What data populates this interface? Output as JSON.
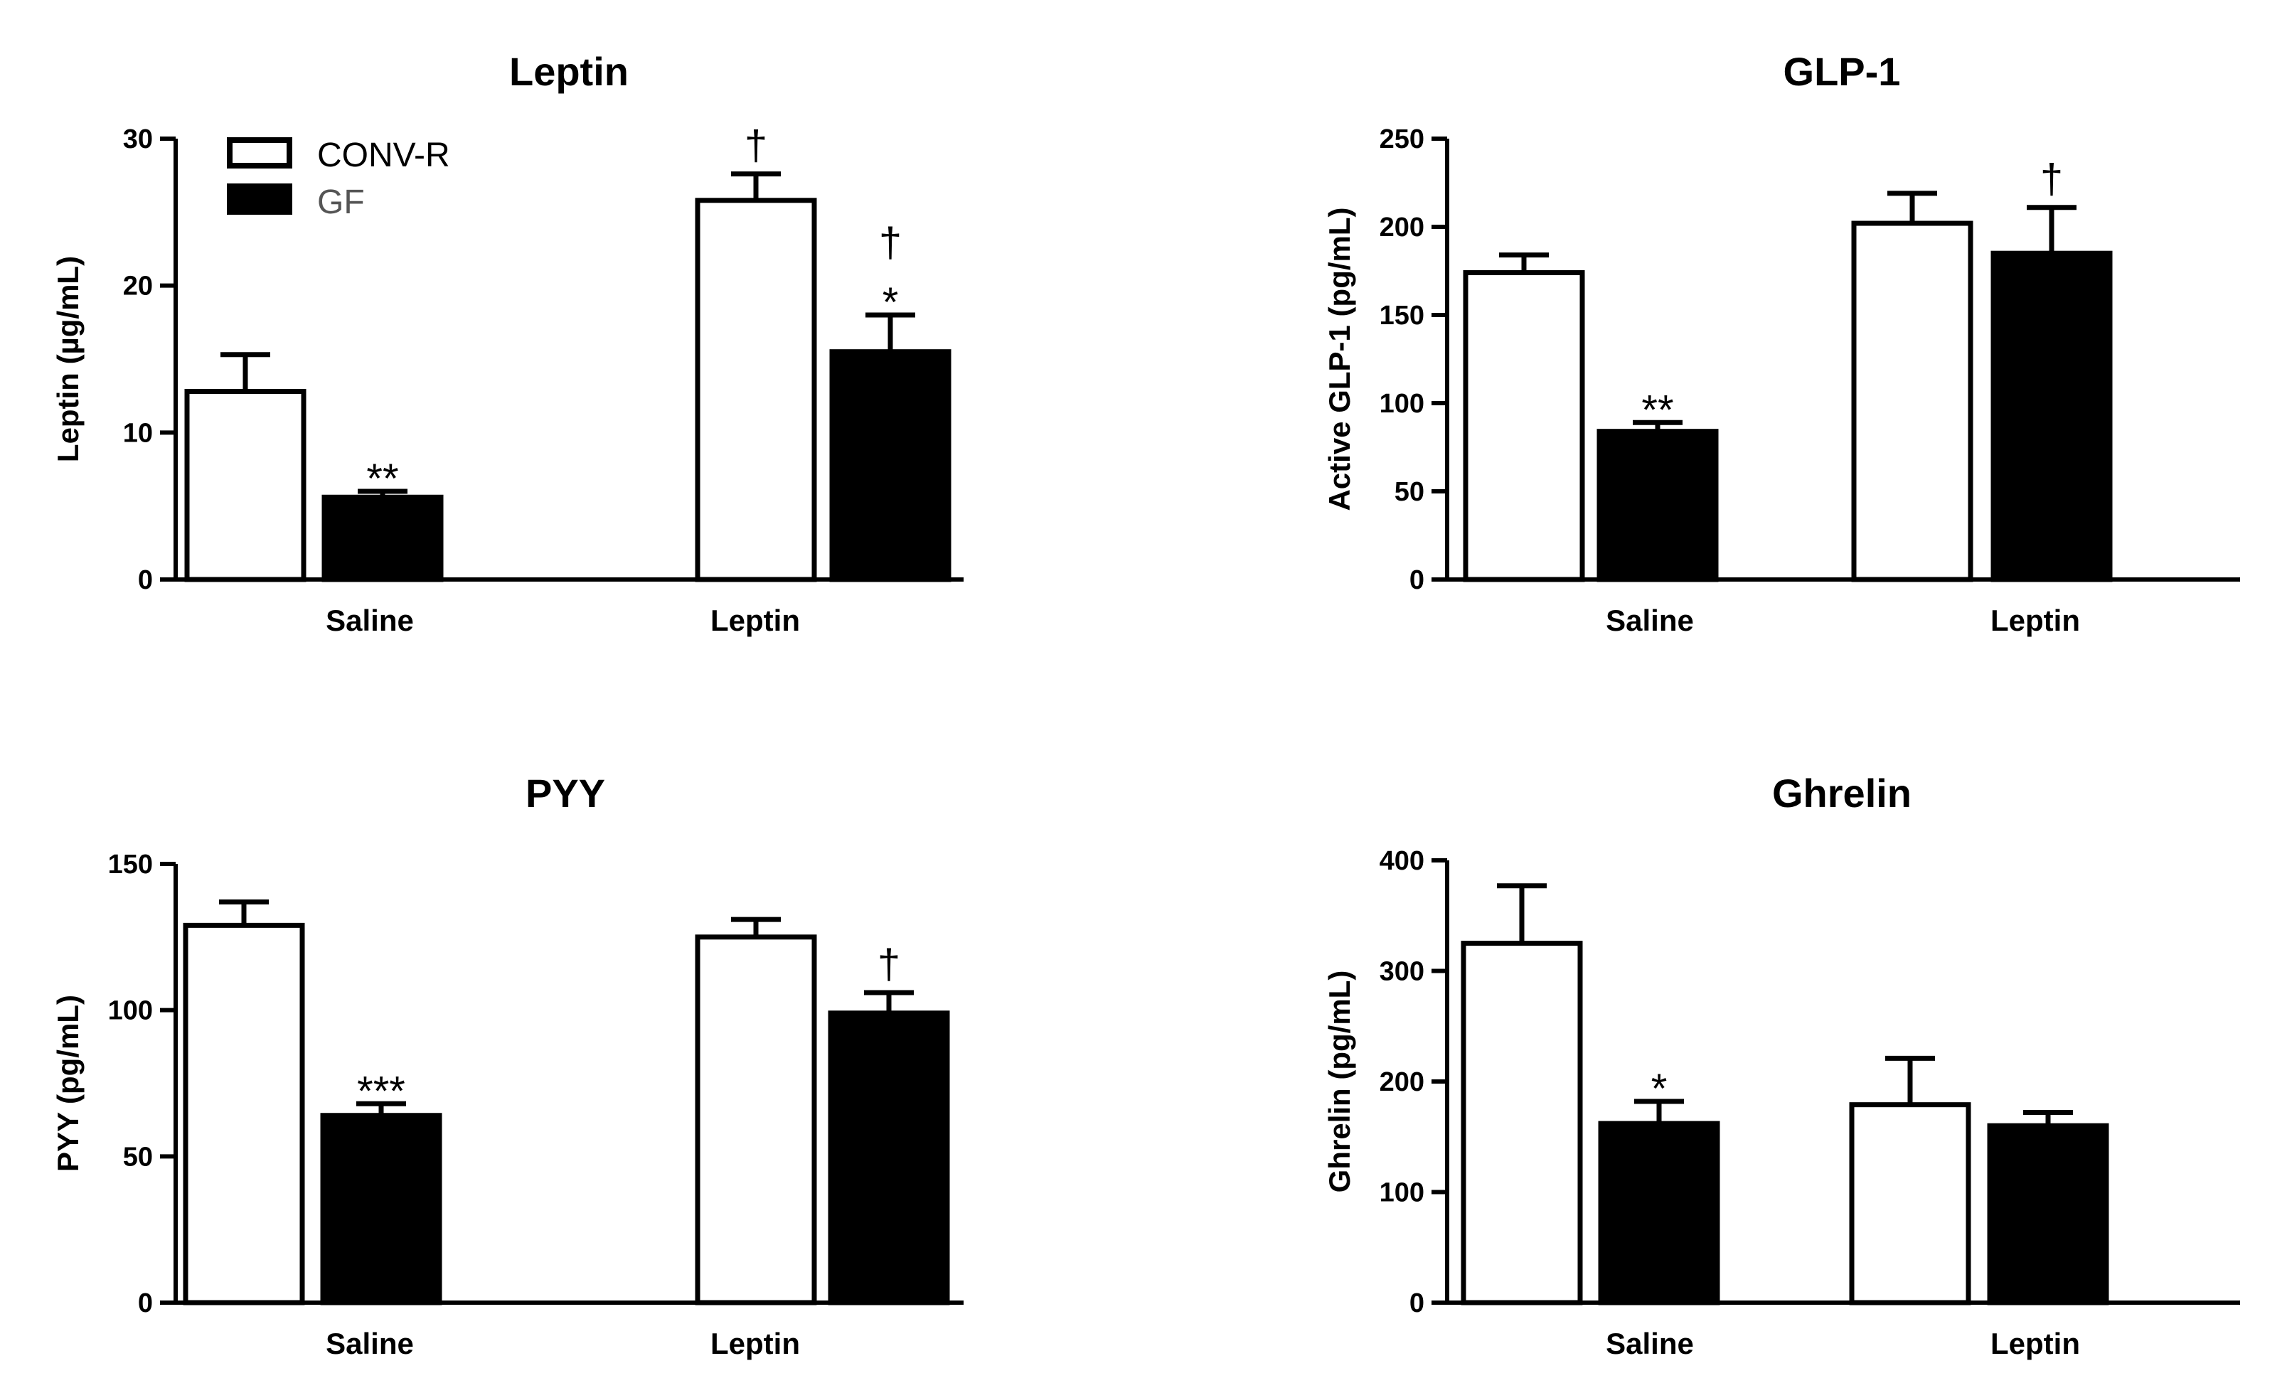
{
  "legend": [
    {
      "label": "CONV-R",
      "fill": "#ffffff"
    },
    {
      "label": "GF",
      "fill": "#000000"
    }
  ],
  "colors": {
    "conv_r": "#ffffff",
    "gf": "#000000",
    "stroke": "#000000"
  },
  "chart_data": [
    {
      "type": "bar",
      "title": "Leptin",
      "ylabel": "Leptin (µg/mL)",
      "categories": [
        "Saline",
        "Leptin"
      ],
      "ylim": [
        0,
        30
      ],
      "yticks": [
        0,
        10,
        20,
        30
      ],
      "series": [
        {
          "name": "CONV-R",
          "values": [
            12.8,
            25.8
          ],
          "errors": [
            2.5,
            1.8
          ]
        },
        {
          "name": "GF",
          "values": [
            5.6,
            15.5
          ],
          "errors": [
            0.4,
            2.5
          ]
        }
      ],
      "annotations": [
        {
          "series": 0,
          "category": 1,
          "lines": [
            "†"
          ]
        },
        {
          "series": 1,
          "category": 0,
          "lines": [
            "**"
          ]
        },
        {
          "series": 1,
          "category": 1,
          "lines": [
            "†",
            "*"
          ]
        }
      ]
    },
    {
      "type": "bar",
      "title": "GLP-1",
      "ylabel": "Active GLP-1 (pg/mL)",
      "categories": [
        "Saline",
        "Leptin"
      ],
      "ylim": [
        0,
        250
      ],
      "yticks": [
        0,
        50,
        100,
        150,
        200,
        250
      ],
      "series": [
        {
          "name": "CONV-R",
          "values": [
            174,
            202
          ],
          "errors": [
            10,
            17
          ]
        },
        {
          "name": "GF",
          "values": [
            84,
            185
          ],
          "errors": [
            5,
            26
          ]
        }
      ],
      "annotations": [
        {
          "series": 1,
          "category": 0,
          "lines": [
            "**"
          ]
        },
        {
          "series": 1,
          "category": 1,
          "lines": [
            "†"
          ]
        }
      ]
    },
    {
      "type": "bar",
      "title": "PYY",
      "ylabel": "PYY (pg/mL)",
      "categories": [
        "Saline",
        "Leptin"
      ],
      "ylim": [
        0,
        150
      ],
      "yticks": [
        0,
        50,
        100,
        150
      ],
      "series": [
        {
          "name": "CONV-R",
          "values": [
            129,
            125
          ],
          "errors": [
            8,
            6
          ]
        },
        {
          "name": "GF",
          "values": [
            64,
            99
          ],
          "errors": [
            4,
            7
          ]
        }
      ],
      "annotations": [
        {
          "series": 1,
          "category": 0,
          "lines": [
            "***"
          ]
        },
        {
          "series": 1,
          "category": 1,
          "lines": [
            "†"
          ]
        }
      ]
    },
    {
      "type": "bar",
      "title": "Ghrelin",
      "ylabel": "Ghrelin (pg/mL)",
      "categories": [
        "Saline",
        "Leptin"
      ],
      "ylim": [
        0,
        400
      ],
      "yticks": [
        0,
        100,
        200,
        300,
        400
      ],
      "series": [
        {
          "name": "CONV-R",
          "values": [
            325,
            179
          ],
          "errors": [
            52,
            42
          ]
        },
        {
          "name": "GF",
          "values": [
            162,
            160
          ],
          "errors": [
            20,
            12
          ]
        }
      ],
      "annotations": [
        {
          "series": 1,
          "category": 0,
          "lines": [
            "*"
          ]
        }
      ]
    }
  ]
}
